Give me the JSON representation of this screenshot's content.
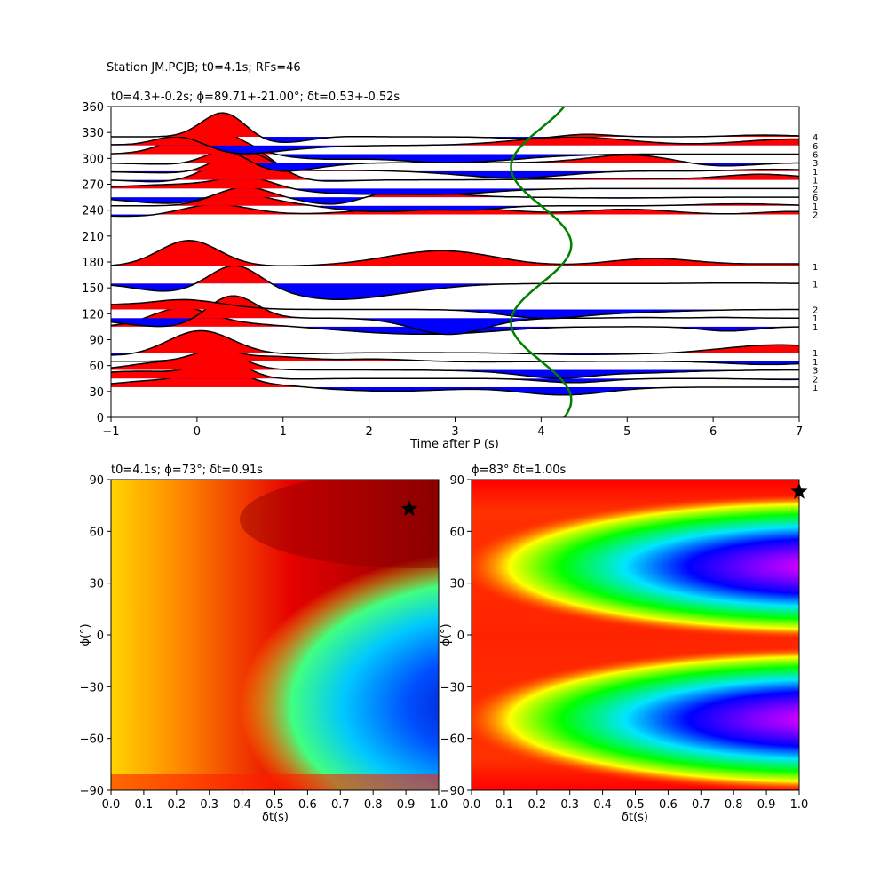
{
  "suptitle": "Station JM.PCJB; t0=4.1s; RFs=46",
  "chart_data": [
    {
      "type": "wiggle",
      "title": "t0=4.3+-0.2s; ϕ=89.71+-21.00°; δt=0.53+-0.52s",
      "xlabel": "Time after P (s)",
      "ylabel": "",
      "xlim": [
        -1,
        7
      ],
      "ylim": [
        0,
        360
      ],
      "xticks": [
        "−1",
        "0",
        "1",
        "2",
        "3",
        "4",
        "5",
        "6",
        "7"
      ],
      "yticks": [
        "0",
        "30",
        "60",
        "90",
        "120",
        "150",
        "180",
        "210",
        "240",
        "270",
        "300",
        "330",
        "360"
      ],
      "positive_fill_color": "#ff0000",
      "negative_fill_color": "#0000ff",
      "fit_curve_color": "#008000",
      "baz_bins": [
        35,
        45,
        55,
        65,
        75,
        105,
        115,
        125,
        155,
        175,
        235,
        245,
        255,
        265,
        275,
        285,
        295,
        305,
        315,
        325
      ],
      "counts": [
        "1",
        "2",
        "3",
        "1",
        "1",
        "1",
        "1",
        "2",
        "1",
        "1",
        "2",
        "1",
        "6",
        "2",
        "1",
        "1",
        "3",
        "6",
        "6",
        "4"
      ]
    },
    {
      "type": "heatmap",
      "title": "t0=4.1s; ϕ=73°; δt=0.91s",
      "xlabel": "δt(s)",
      "ylabel": "ϕ(°)",
      "xlim": [
        0,
        1.0
      ],
      "ylim": [
        -90,
        90
      ],
      "xticks": [
        "0.0",
        "0.1",
        "0.2",
        "0.3",
        "0.4",
        "0.5",
        "0.6",
        "0.7",
        "0.8",
        "0.9",
        "1.0"
      ],
      "yticks": [
        "−90",
        "−60",
        "−30",
        "0",
        "30",
        "60",
        "90"
      ],
      "best_dt": 0.91,
      "best_phi": 73
    },
    {
      "type": "heatmap",
      "title": "ϕ=83° δt=1.00s",
      "xlabel": "δt(s)",
      "ylabel": "ϕ(°)",
      "xlim": [
        0,
        1.0
      ],
      "ylim": [
        -90,
        90
      ],
      "xticks": [
        "0.0",
        "0.1",
        "0.2",
        "0.3",
        "0.4",
        "0.5",
        "0.6",
        "0.7",
        "0.8",
        "0.9",
        "1.0"
      ],
      "yticks": [
        "−90",
        "−60",
        "−30",
        "0",
        "30",
        "60",
        "90"
      ],
      "best_dt": 1.0,
      "best_phi": 83
    }
  ]
}
